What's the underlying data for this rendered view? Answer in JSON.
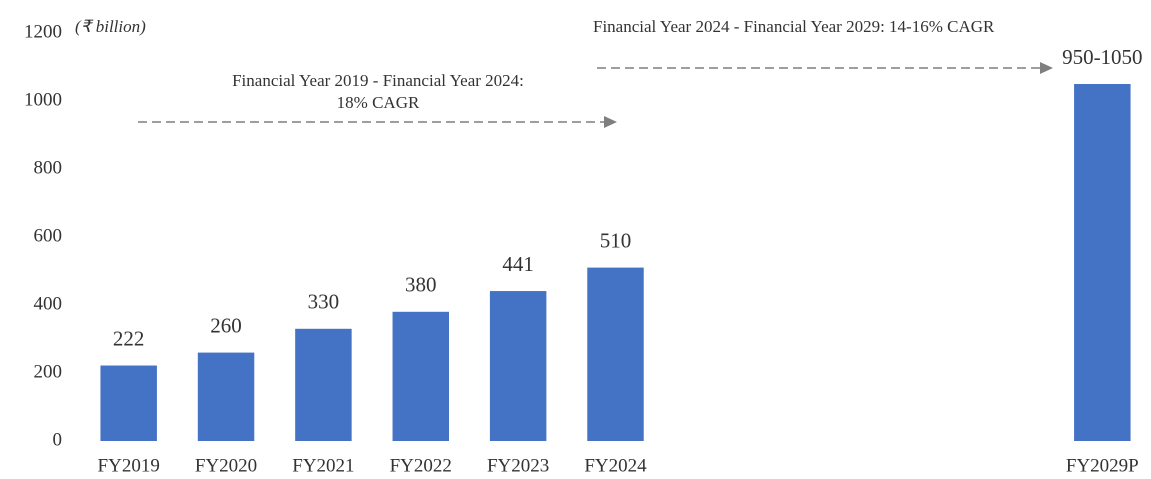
{
  "chart_data": {
    "type": "bar",
    "ylabel": "(₹ billion)",
    "annotations": [
      "Financial Year 2019 - Financial Year 2024:",
      "18% CAGR",
      "Financial Year 2024 - Financial Year 2029: 14-16% CAGR"
    ],
    "categories": [
      "FY2019",
      "FY2020",
      "FY2021",
      "FY2022",
      "FY2023",
      "FY2024",
      null,
      null,
      null,
      null,
      "FY2029P"
    ],
    "values": [
      222,
      260,
      330,
      380,
      441,
      510,
      null,
      null,
      null,
      null,
      1050
    ],
    "value_labels": [
      "222",
      "260",
      "330",
      "380",
      "441",
      "510",
      null,
      null,
      null,
      null,
      "950-1050"
    ],
    "color": "#4472c4",
    "ylim": [
      0,
      1200
    ],
    "yticks": [
      0,
      200,
      400,
      600,
      800,
      1000,
      1200
    ],
    "grid": false
  }
}
